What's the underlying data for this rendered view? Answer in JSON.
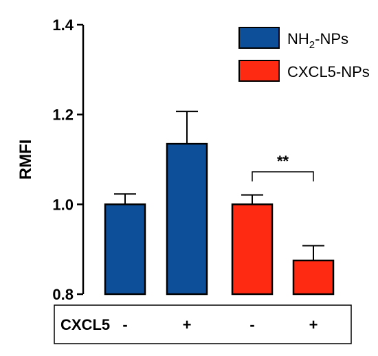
{
  "chart_data": {
    "type": "bar",
    "ylabel": "RMFI",
    "ylim": [
      0.8,
      1.4
    ],
    "yticks": [
      "0.8",
      "1.0",
      "1.2",
      "1.4"
    ],
    "y_tick_values": [
      0.8,
      1.0,
      1.2,
      1.4
    ],
    "categories": [
      "-",
      "+",
      "-",
      "+"
    ],
    "values": [
      1.0,
      1.135,
      1.0,
      0.875
    ],
    "errors": [
      0.023,
      0.072,
      0.021,
      0.033
    ],
    "series_index": [
      0,
      0,
      1,
      1
    ],
    "series": [
      {
        "name_main": "NH",
        "name_sub": "2",
        "name_rest": "-NPs",
        "color": "#0e4f9a"
      },
      {
        "name_main": "CXCL5-NPs",
        "name_sub": "",
        "name_rest": "",
        "color": "#ff2a12"
      }
    ],
    "legend_position": "top-right",
    "grid": false,
    "row_label": "CXCL5",
    "treatments": [
      "-",
      "+",
      "-",
      "+"
    ],
    "significance": {
      "label": "**",
      "between": [
        2,
        3
      ]
    }
  }
}
